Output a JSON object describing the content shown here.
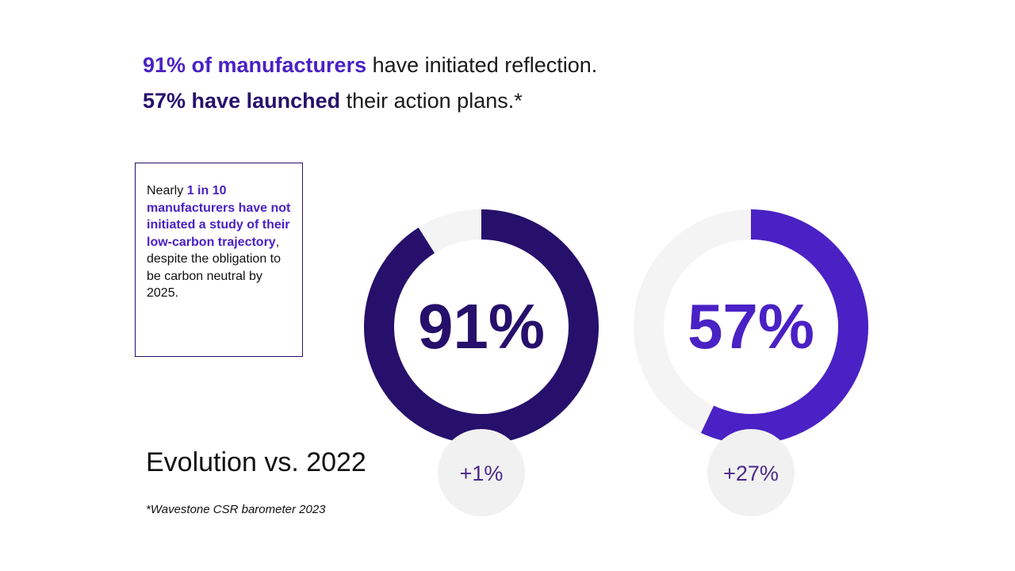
{
  "headlines": {
    "line1": {
      "strong": "91% of manufacturers",
      "rest": " have initiated reflection."
    },
    "line2": {
      "strong": "57% have launched",
      "rest": " their action plans.*"
    }
  },
  "info_box": {
    "before": "Nearly ",
    "emphasis": "1 in 10 manufacturers have not initiated a study of their low-carbon trajectory",
    "after": ", despite the obligation to be carbon neutral by 2025."
  },
  "evolution_label": "Evolution vs. 2022",
  "source_note": "*Wavestone CSR barometer 2023",
  "colors": {
    "dark_purple": "#26106b",
    "bright_purple": "#4a21c4",
    "track": "#f4f4f5",
    "badge_bg": "#f1f1f2",
    "badge_text": "#4b2a88"
  },
  "chart_data": [
    {
      "type": "pie",
      "style": "donut",
      "value": 91,
      "max": 100,
      "center_label": "91%",
      "evolution_label": "+1%",
      "color": "#26106b"
    },
    {
      "type": "pie",
      "style": "donut",
      "value": 57,
      "max": 100,
      "center_label": "57%",
      "evolution_label": "+27%",
      "color": "#4a21c4"
    }
  ]
}
